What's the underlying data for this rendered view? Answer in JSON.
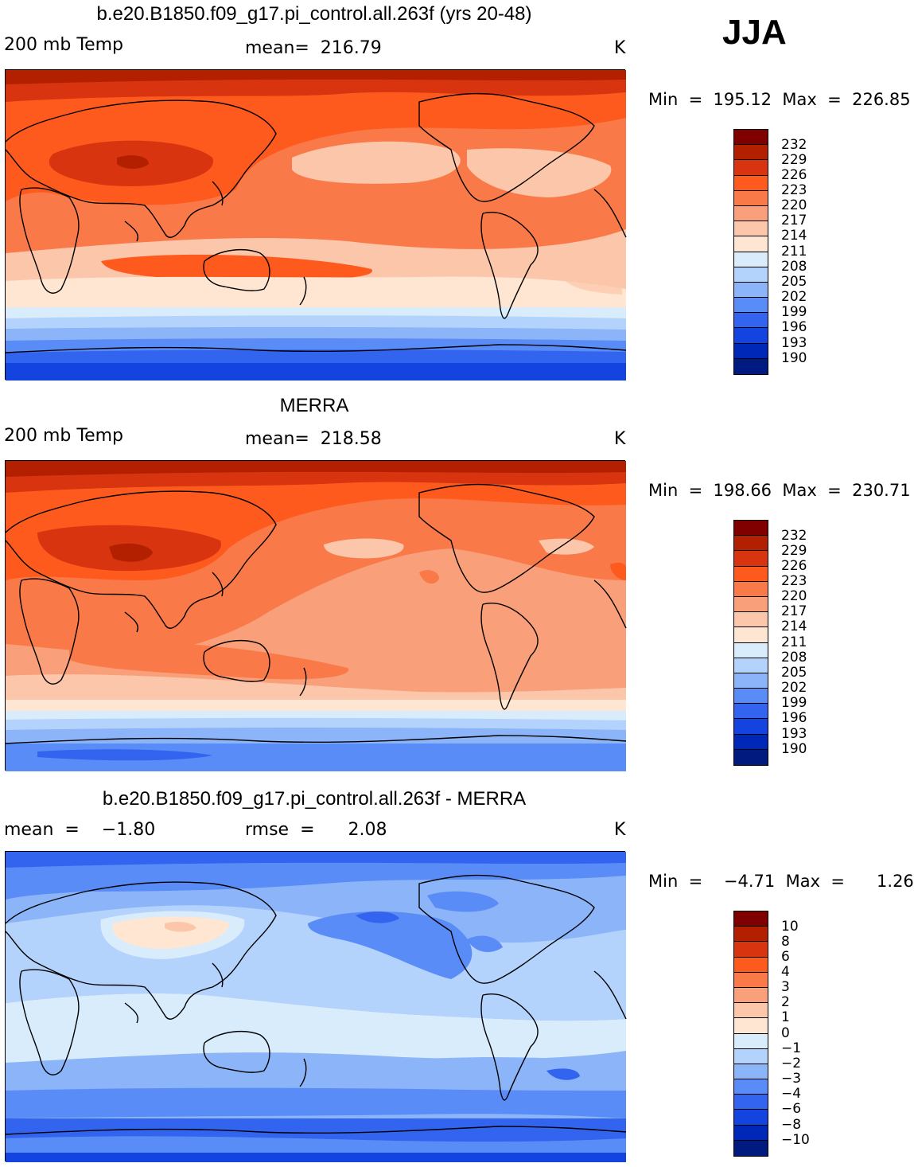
{
  "season": "JJA",
  "colors": {
    "abs": [
      "#800000",
      "#b22000",
      "#d83410",
      "#ff5a1e",
      "#f97a48",
      "#f9a07a",
      "#fcc6aa",
      "#fee6d2",
      "#d8ecfc",
      "#b4d3fc",
      "#8cb4f8",
      "#5a8cf8",
      "#3264f0",
      "#1444e0",
      "#0028b8",
      "#001a80"
    ],
    "diff": [
      "#800000",
      "#b22000",
      "#d83410",
      "#ff5a1e",
      "#f97a48",
      "#f9a07a",
      "#fcc6aa",
      "#fee6d2",
      "#d8ecfc",
      "#b4d3fc",
      "#8cb4f8",
      "#5a8cf8",
      "#3264f0",
      "#1444e0",
      "#0028b8",
      "#001a80"
    ],
    "coast": "#000000"
  },
  "panels": [
    {
      "title": "b.e20.B1850.f09_g17.pi_control.all.263f (yrs 20-48)",
      "left_label": "200 mb Temp",
      "center_label": "mean=  216.79",
      "units": "K",
      "minmax": "Min  =  195.12  Max  =  226.85",
      "legend_labels": [
        "232",
        "229",
        "226",
        "223",
        "220",
        "217",
        "214",
        "211",
        "208",
        "205",
        "202",
        "199",
        "196",
        "193",
        "190"
      ]
    },
    {
      "title": "MERRA",
      "left_label": "200 mb Temp",
      "center_label": "mean=  218.58",
      "units": "K",
      "minmax": "Min  =  198.66  Max  =  230.71",
      "legend_labels": [
        "232",
        "229",
        "226",
        "223",
        "220",
        "217",
        "214",
        "211",
        "208",
        "205",
        "202",
        "199",
        "196",
        "193",
        "190"
      ]
    },
    {
      "title": "b.e20.B1850.f09_g17.pi_control.all.263f - MERRA",
      "left_label": "mean  =    −1.80",
      "center_label": "rmse  =      2.08",
      "units": "K",
      "minmax": "Min  =    −4.71  Max  =      1.26",
      "legend_labels": [
        "10",
        "8",
        "6",
        "4",
        "3",
        "2",
        "1",
        "0",
        "−1",
        "−2",
        "−3",
        "−4",
        "−6",
        "−8",
        "−10"
      ]
    }
  ]
}
